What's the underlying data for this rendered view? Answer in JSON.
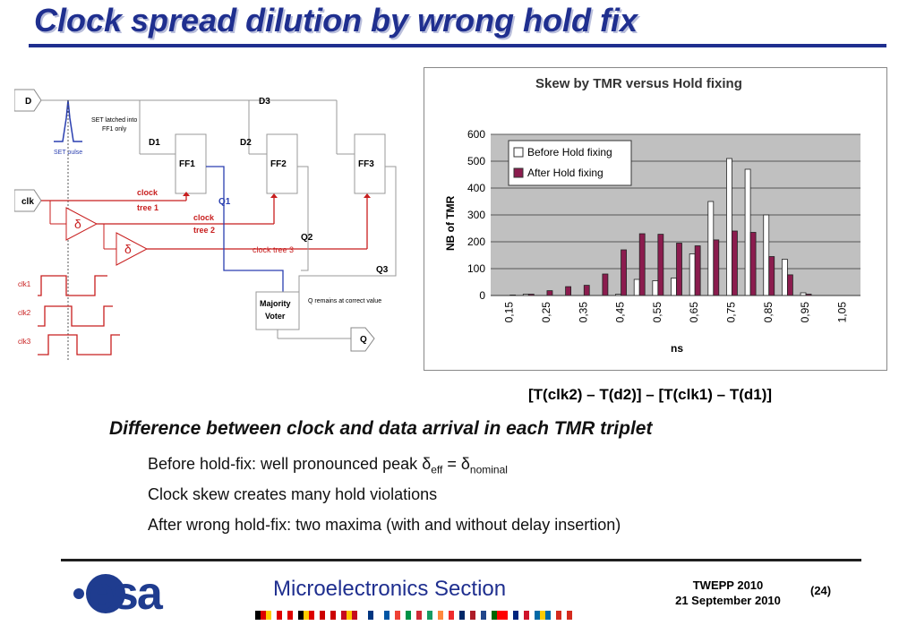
{
  "title": "Clock spread dilution by wrong hold fix",
  "schematic": {
    "d": "D",
    "d3": "D3",
    "d1": "D1",
    "d2": "D2",
    "ff1": "FF1",
    "ff2": "FF2",
    "ff3": "FF3",
    "set_latched_1": "SET latched into",
    "set_latched_2": "FF1 only",
    "set_pulse": "SET pulse",
    "clk": "clk",
    "clock_tree1_a": "clock",
    "clock_tree1_b": "tree 1",
    "clock_tree2_a": "clock",
    "clock_tree2_b": "tree 2",
    "clock_tree3": "clock tree 3",
    "q1": "Q1",
    "q2": "Q2",
    "q3": "Q3",
    "q": "Q",
    "majority_1": "Majority",
    "majority_2": "Voter",
    "q_remains": "Q remains at correct value",
    "delta": "δ",
    "clk1": "clk1",
    "clk2": "clk2",
    "clk3": "clk3"
  },
  "chart_data": {
    "type": "bar",
    "title": "Skew by TMR versus Hold fixing",
    "xlabel": "ns",
    "ylabel": "NB of TMR",
    "ylim": [
      0,
      600
    ],
    "yticks": [
      "0",
      "100",
      "200",
      "300",
      "400",
      "500",
      "600"
    ],
    "xtick_labels": [
      "0,15",
      "0,25",
      "0,35",
      "0,45",
      "0,55",
      "0,65",
      "0,75",
      "0,85",
      "0,95",
      "1,05"
    ],
    "categories": [
      0.15,
      0.2,
      0.25,
      0.3,
      0.35,
      0.4,
      0.45,
      0.5,
      0.55,
      0.6,
      0.65,
      0.7,
      0.75,
      0.8,
      0.85,
      0.9,
      0.95
    ],
    "series": [
      {
        "name": "Before Hold fixing",
        "color": "#ffffff",
        "values": [
          0,
          5,
          0,
          0,
          0,
          0,
          5,
          60,
          55,
          65,
          155,
          350,
          510,
          470,
          300,
          135,
          10
        ]
      },
      {
        "name": "After Hold fixing",
        "color": "#8b1c4e",
        "values": [
          2,
          5,
          18,
          33,
          38,
          80,
          170,
          230,
          228,
          195,
          185,
          207,
          240,
          235,
          145,
          77,
          5
        ]
      }
    ],
    "legend": "top-left",
    "plot_bg": "#c0c0c0"
  },
  "formula": "[T(clk2) – T(d2)] – [T(clk1) – T(d1)]",
  "subhead": "Difference between clock and data arrival in each TMR triplet",
  "bullet1_pre": "Before hold-fix: well pronounced peak ",
  "bullet1_delta1": "δ",
  "bullet1_sub1": "eff",
  "bullet1_eq": " = ",
  "bullet1_delta2": "δ",
  "bullet1_sub2": "nominal",
  "bullet2": "Clock skew creates many hold violations",
  "bullet3": "After wrong hold-fix: two maxima (with and without delay insertion)",
  "footer": {
    "logo": "esa",
    "section": "Microelectronics Section",
    "conf1": "TWEPP 2010",
    "conf2": "21 September 2010",
    "page": "(24)"
  }
}
